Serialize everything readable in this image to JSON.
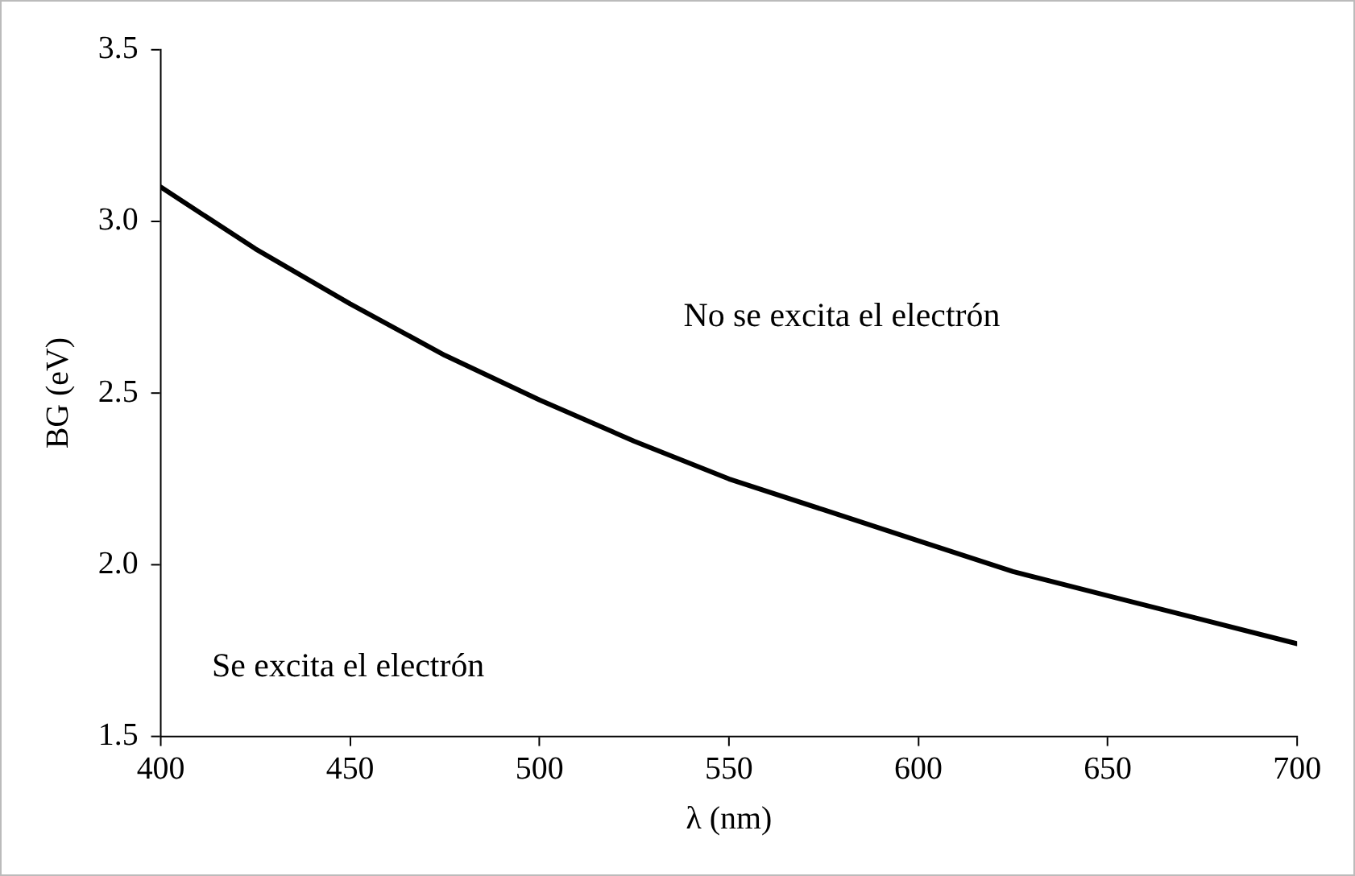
{
  "chart_data": {
    "type": "line",
    "xlabel": "λ (nm)",
    "ylabel": "BG (eV)",
    "x": [
      400,
      425,
      450,
      475,
      500,
      525,
      550,
      575,
      600,
      625,
      650,
      675,
      700
    ],
    "series": [
      {
        "color": "#000000",
        "values": [
          3.1,
          2.92,
          2.76,
          2.61,
          2.48,
          2.36,
          2.25,
          2.16,
          2.07,
          1.98,
          1.91,
          1.84,
          1.77
        ]
      }
    ],
    "xlim": [
      400,
      700
    ],
    "xticks": [
      400,
      450,
      500,
      550,
      600,
      650,
      700
    ],
    "ylim": [
      1.5,
      3.5
    ],
    "yticks": [
      {
        "value": 1.5,
        "label": "1.5"
      },
      {
        "value": 2,
        "label": "2.0"
      },
      {
        "value": 2.5,
        "label": "2.5"
      },
      {
        "value": 3,
        "label": "3.0"
      },
      {
        "value": 3.5,
        "label": "3.5"
      }
    ],
    "grid": false,
    "legend": false,
    "marker": "none",
    "line_style": "solid",
    "annotations": [
      "No se excita el electrón",
      "Se excita el electrón"
    ]
  }
}
